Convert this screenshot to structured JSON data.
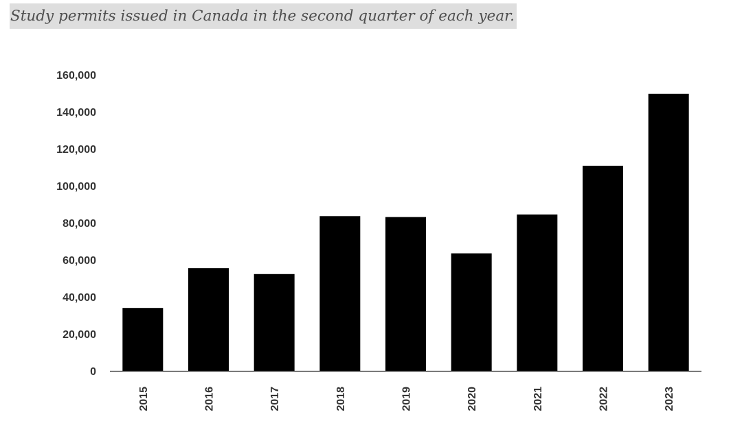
{
  "caption": "Study permits issued in Canada in the second quarter of each year.",
  "chart_data": {
    "type": "bar",
    "title": "",
    "xlabel": "",
    "ylabel": "",
    "categories": [
      "2015",
      "2016",
      "2017",
      "2018",
      "2019",
      "2020",
      "2021",
      "2022",
      "2023"
    ],
    "values": [
      34000,
      55500,
      52300,
      83600,
      83100,
      63500,
      84500,
      110800,
      149700
    ],
    "ylim": [
      0,
      160000
    ],
    "yticks": [
      0,
      20000,
      40000,
      60000,
      80000,
      100000,
      120000,
      140000,
      160000
    ],
    "ytick_labels": [
      "0",
      "20,000",
      "40,000",
      "60,000",
      "80,000",
      "100,000",
      "120,000",
      "140,000",
      "160,000"
    ],
    "xtick_rotation": "vertical",
    "grid": false,
    "legend": "none",
    "bar_color": "#000000",
    "axis_color": "#333333"
  }
}
